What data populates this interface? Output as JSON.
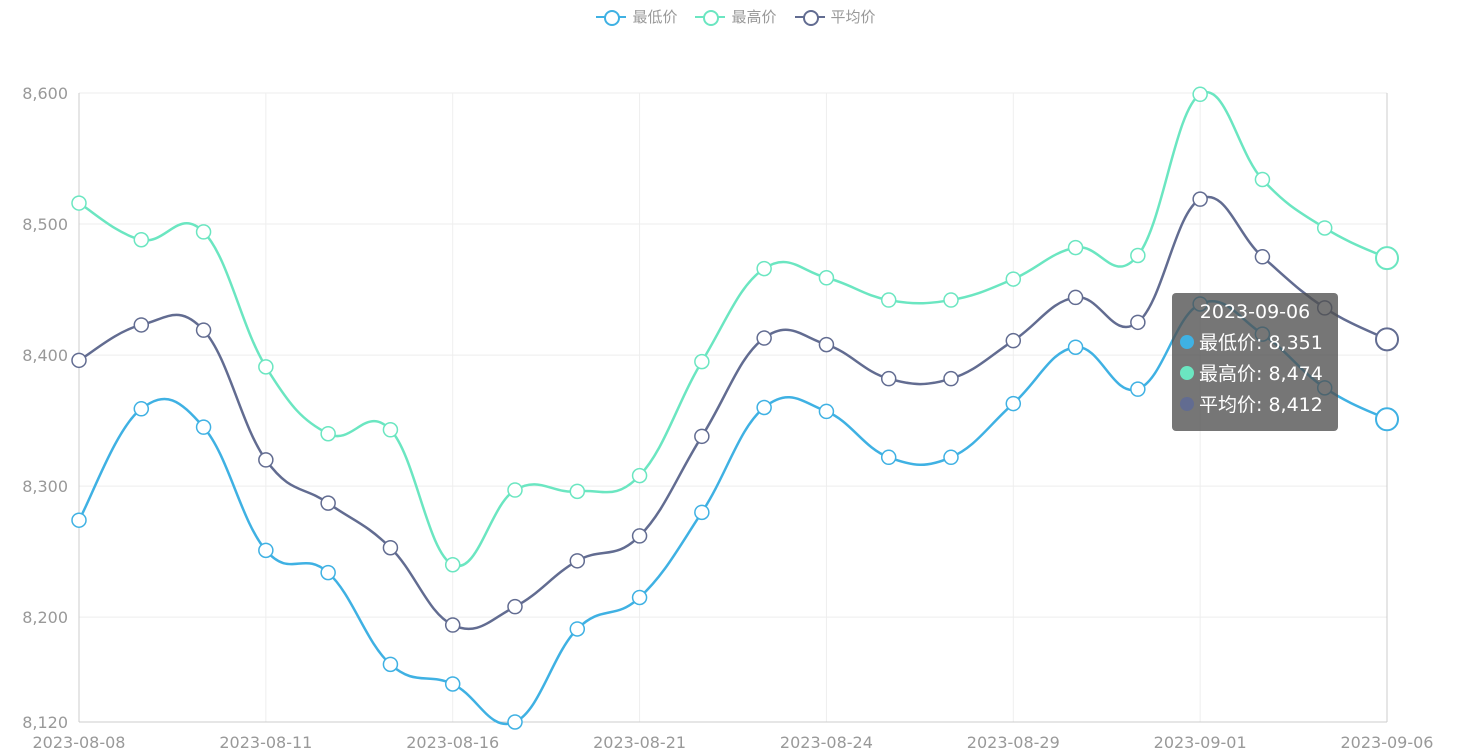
{
  "chart_data": {
    "type": "line",
    "x": [
      "2023-08-08",
      "2023-08-09",
      "2023-08-10",
      "2023-08-11",
      "2023-08-12",
      "2023-08-13",
      "2023-08-16",
      "2023-08-17",
      "2023-08-18",
      "2023-08-21",
      "2023-08-22",
      "2023-08-23",
      "2023-08-24",
      "2023-08-25",
      "2023-08-28",
      "2023-08-29",
      "2023-08-30",
      "2023-08-31",
      "2023-09-01",
      "2023-09-04",
      "2023-09-05",
      "2023-09-06"
    ],
    "x_tick_labels": [
      "2023-08-08",
      "2023-08-11",
      "2023-08-16",
      "2023-08-21",
      "2023-08-24",
      "2023-08-29",
      "2023-09-01",
      "2023-09-06"
    ],
    "series": [
      {
        "name": "最低价",
        "color": "#3fb1e3",
        "values": [
          8274,
          8359,
          8345,
          8251,
          8234,
          8164,
          8149,
          8120,
          8191,
          8215,
          8280,
          8360,
          8357,
          8322,
          8322,
          8363,
          8406,
          8374,
          8439,
          8416,
          8375,
          8351
        ]
      },
      {
        "name": "最高价",
        "color": "#6be6c1",
        "values": [
          8516,
          8488,
          8494,
          8391,
          8340,
          8343,
          8240,
          8297,
          8296,
          8308,
          8395,
          8466,
          8459,
          8442,
          8442,
          8458,
          8482,
          8476,
          8599,
          8534,
          8497,
          8474
        ]
      },
      {
        "name": "平均价",
        "color": "#626c91",
        "values": [
          8396,
          8423,
          8419,
          8320,
          8287,
          8253,
          8194,
          8208,
          8243,
          8262,
          8338,
          8413,
          8408,
          8382,
          8382,
          8411,
          8444,
          8425,
          8519,
          8475,
          8436,
          8412
        ]
      }
    ],
    "y_ticks": [
      "8,120",
      "8,200",
      "8,300",
      "8,400",
      "8,500",
      "8,600"
    ],
    "ylim": [
      8120,
      8600
    ],
    "grid": true,
    "legend": "top-center"
  },
  "tooltip": {
    "title": "2023-09-06",
    "rows": [
      {
        "label": "最低价: 8,351",
        "color": "#3fb1e3"
      },
      {
        "label": "最高价: 8,474",
        "color": "#6be6c1"
      },
      {
        "label": "平均价: 8,412",
        "color": "#626c91"
      }
    ]
  }
}
